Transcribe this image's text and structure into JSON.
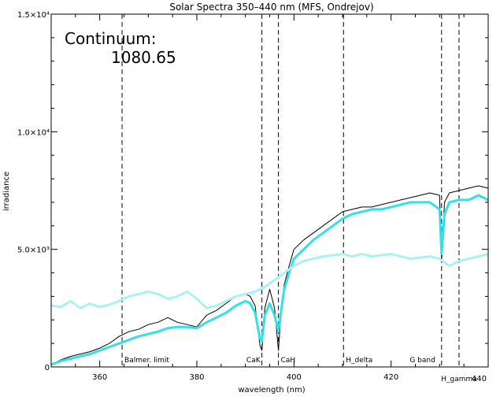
{
  "chart_data": {
    "type": "line",
    "title": "Solar Spectra 350–440 nm (MFS, Ondrejov)",
    "xlabel": "wavelength (nm)",
    "ylabel": "irradiance",
    "xlim": [
      350,
      440
    ],
    "ylim": [
      0,
      15000
    ],
    "x_ticks": [
      360,
      380,
      400,
      420,
      440
    ],
    "y_ticks": [
      {
        "value": 0,
        "label": "0"
      },
      {
        "value": 5000,
        "label": "5.0×10³"
      },
      {
        "value": 10000,
        "label": "1.0×10⁴"
      },
      {
        "value": 15000,
        "label": "1.5×10⁴"
      }
    ],
    "annotation": {
      "label": "Continuum:",
      "value": "1080.65"
    },
    "lines": [
      {
        "label": "Balmer. limit",
        "x": 364.6
      },
      {
        "label": "CaK",
        "x": 393.4
      },
      {
        "label": "CaH",
        "x": 396.8
      },
      {
        "label": "H_delta",
        "x": 410.2
      },
      {
        "label": "G band",
        "x": 430.4
      },
      {
        "label": "H_gamma",
        "x": 434.0
      }
    ],
    "series": [
      {
        "color": "#000000",
        "x": [
          350,
          352,
          354,
          356,
          358,
          360,
          362,
          364,
          366,
          368,
          370,
          372,
          374,
          376,
          378,
          380,
          382,
          384,
          386,
          388,
          390,
          391,
          392,
          393,
          393.4,
          394,
          395,
          396,
          396.8,
          397.5,
          398,
          399,
          400,
          402,
          404,
          406,
          408,
          410,
          412,
          414,
          416,
          418,
          420,
          422,
          424,
          426,
          428,
          430,
          430.4,
          431,
          432,
          434,
          436,
          438,
          440
        ],
        "values": [
          100,
          300,
          450,
          550,
          650,
          800,
          1000,
          1300,
          1500,
          1600,
          1800,
          1900,
          2100,
          1900,
          1800,
          1700,
          2200,
          2400,
          2700,
          3000,
          3100,
          3000,
          2600,
          900,
          700,
          2500,
          3300,
          2500,
          700,
          2800,
          3500,
          4300,
          5000,
          5400,
          5700,
          6000,
          6300,
          6600,
          6700,
          6800,
          6800,
          6900,
          7000,
          7100,
          7200,
          7300,
          7400,
          7300,
          4500,
          7000,
          7400,
          7500,
          7600,
          7700,
          7600
        ]
      },
      {
        "color": "#33e0e8",
        "x": [
          350,
          352,
          354,
          356,
          358,
          360,
          362,
          364,
          366,
          368,
          370,
          372,
          374,
          376,
          378,
          380,
          382,
          384,
          386,
          388,
          390,
          391,
          392,
          393,
          393.4,
          394,
          395,
          396,
          396.8,
          397.5,
          398,
          399,
          400,
          402,
          404,
          406,
          408,
          410,
          412,
          414,
          416,
          418,
          420,
          422,
          424,
          426,
          428,
          430,
          430.4,
          431,
          432,
          434,
          436,
          438,
          440
        ],
        "values": [
          100,
          250,
          350,
          450,
          550,
          700,
          850,
          1000,
          1150,
          1300,
          1400,
          1500,
          1650,
          1700,
          1700,
          1650,
          1900,
          2100,
          2300,
          2600,
          2800,
          2700,
          2300,
          1200,
          1100,
          2200,
          2700,
          2200,
          1500,
          2600,
          3300,
          4000,
          4600,
          5000,
          5400,
          5700,
          6000,
          6300,
          6500,
          6600,
          6700,
          6700,
          6800,
          6900,
          7000,
          7000,
          7000,
          6700,
          4800,
          6500,
          7000,
          7100,
          7100,
          7300,
          7100
        ]
      },
      {
        "color": "#a8f2f4",
        "x": [
          350,
          352,
          354,
          356,
          358,
          360,
          362,
          364,
          366,
          368,
          370,
          372,
          374,
          376,
          378,
          380,
          382,
          384,
          386,
          388,
          390,
          392,
          394,
          396,
          398,
          400,
          402,
          404,
          406,
          408,
          410,
          412,
          414,
          416,
          418,
          420,
          422,
          424,
          426,
          428,
          430,
          432,
          434,
          436,
          438,
          440
        ],
        "values": [
          2600,
          2550,
          2800,
          2500,
          2700,
          2550,
          2650,
          2800,
          3000,
          3100,
          3200,
          3100,
          2900,
          3000,
          3200,
          2900,
          2500,
          2600,
          2800,
          3000,
          3100,
          3200,
          3400,
          3700,
          4000,
          4300,
          4500,
          4600,
          4700,
          4750,
          4800,
          4700,
          4800,
          4700,
          4750,
          4800,
          4700,
          4600,
          4650,
          4700,
          4600,
          4300,
          4500,
          4600,
          4700,
          4800
        ]
      }
    ]
  }
}
